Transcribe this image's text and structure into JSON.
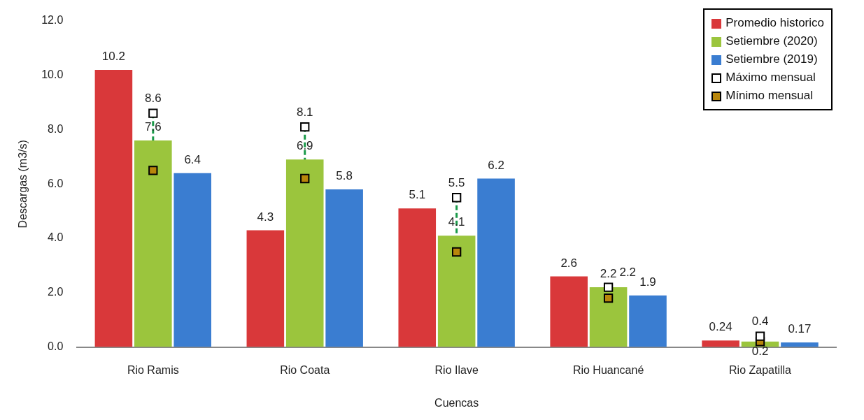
{
  "chart_data": {
    "type": "bar",
    "xlabel": "Cuencas",
    "ylabel": "Descargas (m3/s)",
    "categories": [
      "Rio Ramis",
      "Rio Coata",
      "Rio Ilave",
      "Rio Huancané",
      "Rio Zapatilla"
    ],
    "series": [
      {
        "name": "Promedio historico",
        "color": "#d9383a",
        "values": [
          10.2,
          4.3,
          5.1,
          2.6,
          0.24
        ],
        "value_labels": [
          "10.2",
          "4.3",
          "5.1",
          "2.6",
          "0.24"
        ]
      },
      {
        "name": "Setiembre (2020)",
        "color": "#9bc53d",
        "values": [
          7.6,
          6.9,
          4.1,
          2.2,
          0.2
        ],
        "value_labels": [
          "7.6",
          "6.9",
          "4.1",
          "2.2",
          null
        ]
      },
      {
        "name": "Setiembre (2019)",
        "color": "#3a7dd1",
        "values": [
          6.4,
          5.8,
          6.2,
          1.9,
          0.17
        ],
        "value_labels": [
          "6.4",
          "5.8",
          "6.2",
          "1.9",
          "0.17"
        ]
      },
      {
        "name": "Máximo mensual",
        "type": "scatter",
        "color": "#ffffff",
        "marker": "square",
        "x": [
          "Rio Ramis",
          "Rio Coata",
          "Rio Ilave",
          "Rio Huancané",
          "Rio Zapatilla"
        ],
        "values": [
          8.6,
          8.1,
          5.5,
          2.2,
          0.4
        ],
        "value_labels": [
          "8.6",
          "8.1",
          "5.5",
          "2.2",
          "0.4"
        ]
      },
      {
        "name": "Mínimo mensual",
        "type": "scatter",
        "color": "#b8860b",
        "marker": "square",
        "x": [
          "Rio Ramis",
          "Rio Coata",
          "Rio Ilave",
          "Rio Huancané",
          "Rio Zapatilla"
        ],
        "values": [
          6.5,
          6.2,
          3.5,
          1.8,
          0.2
        ],
        "value_labels": [
          null,
          null,
          null,
          null,
          "0.2"
        ]
      }
    ],
    "ylim": [
      0,
      12
    ],
    "yticks": [
      {
        "value": 0,
        "label": "0.0"
      },
      {
        "value": 2,
        "label": "2.0"
      },
      {
        "value": 4,
        "label": "4.0"
      },
      {
        "value": 6,
        "label": "6.0"
      },
      {
        "value": 8,
        "label": "8.0"
      },
      {
        "value": 10,
        "label": "10.0"
      },
      {
        "value": 12,
        "label": "12.0"
      }
    ],
    "grid": false,
    "legend": "top right"
  }
}
